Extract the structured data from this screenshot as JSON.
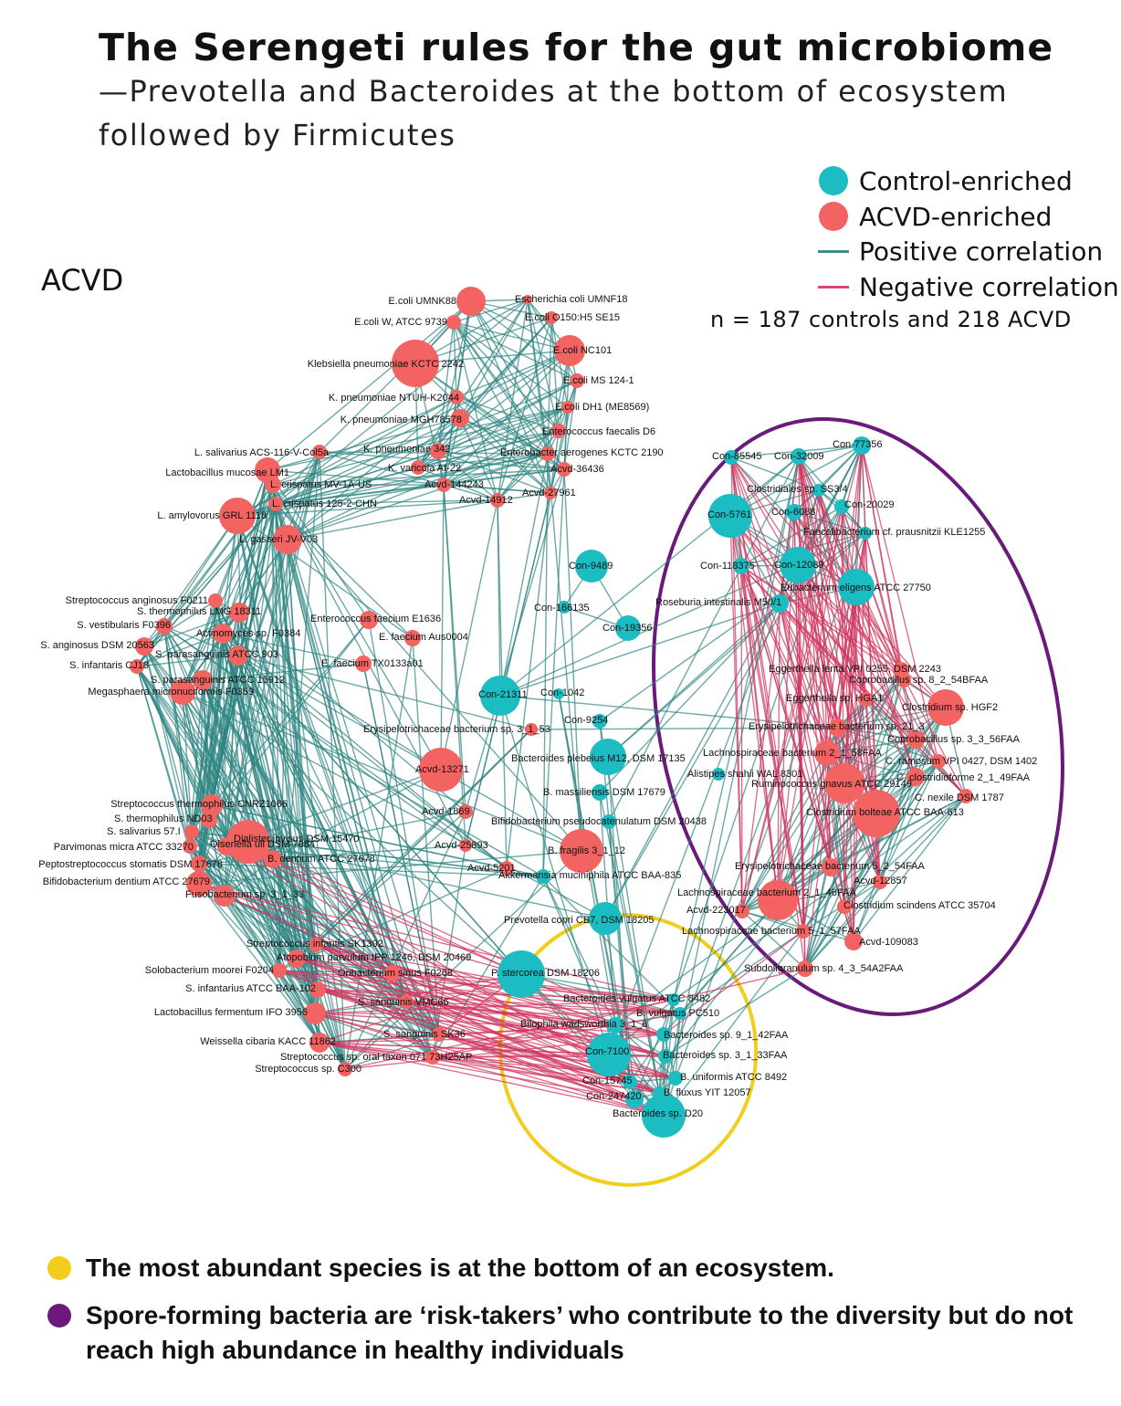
{
  "header": {
    "title": "The Serengeti rules for the gut microbiome",
    "subtitle": "—Prevotella and Bacteroides at the bottom of ecosystem followed by Firmicutes"
  },
  "panel_label": "ACVD",
  "legend": {
    "control": {
      "label": "Control-enriched",
      "color": "#1bbcc2"
    },
    "acvd": {
      "label": "ACVD-enriched",
      "color": "#f26361"
    },
    "positive": {
      "label": "Positive correlation",
      "color": "#3f8f8c"
    },
    "negative": {
      "label": "Negative correlation",
      "color": "#d9486e"
    }
  },
  "sample_note": "n = 187 controls and 218 ACVD",
  "footer": {
    "yellow": {
      "text": "The most abundant species is at the bottom of an ecosystem.",
      "color": "#f3cd1b"
    },
    "purple": {
      "text": "Spore-forming bacteria are ‘risk-takers’ who contribute to the diversity but do not reach high abundance in healthy individuals",
      "color": "#6a1a7a"
    }
  },
  "colors": {
    "positive_edge": "#2e8582",
    "negative_edge": "#d0365f",
    "yellow_ring": "#f3cd1b",
    "purple_ring": "#6a1a7a"
  },
  "network": {
    "nodes": [
      {
        "id": "n1",
        "label": "E.coli UMNK88",
        "type": "acvd"
      },
      {
        "id": "n2",
        "label": "Escherichia coli UMNF18",
        "type": "acvd"
      },
      {
        "id": "n3",
        "label": "E.coli W, ATCC 9739",
        "type": "acvd"
      },
      {
        "id": "n4",
        "label": "E.coli O150:H5 SE15",
        "type": "acvd"
      },
      {
        "id": "n5",
        "label": "E.coli NC101",
        "type": "acvd"
      },
      {
        "id": "n6",
        "label": "Klebsiella pneumoniae KCTC 2242",
        "type": "acvd"
      },
      {
        "id": "n7",
        "label": "E.coli MS 124-1",
        "type": "acvd"
      },
      {
        "id": "n8",
        "label": "K. pneumoniae NTUH-K2044",
        "type": "acvd"
      },
      {
        "id": "n9",
        "label": "E.coli DH1 (ME8569)",
        "type": "acvd"
      },
      {
        "id": "n10",
        "label": "K. pneumoniae MGH78578",
        "type": "acvd"
      },
      {
        "id": "n11",
        "label": "Enterococcus faecalis D6",
        "type": "acvd"
      },
      {
        "id": "n12",
        "label": "L. salivarius ACS-116-V-Col5a",
        "type": "acvd"
      },
      {
        "id": "n13",
        "label": "K. pneumoniae 342",
        "type": "acvd"
      },
      {
        "id": "n14",
        "label": "Enterobacter aerogenes KCTC 2190",
        "type": "acvd"
      },
      {
        "id": "n15",
        "label": "Lactobacillus mucosae LM1",
        "type": "acvd"
      },
      {
        "id": "n16",
        "label": "K. varicola At-22",
        "type": "acvd"
      },
      {
        "id": "n17",
        "label": "Acvd-36436",
        "type": "acvd"
      },
      {
        "id": "n18",
        "label": "L. crispatus MV-1A-US",
        "type": "acvd"
      },
      {
        "id": "n19",
        "label": "Acvd-144243",
        "type": "acvd"
      },
      {
        "id": "n20",
        "label": "Acvd-27961",
        "type": "acvd"
      },
      {
        "id": "n21",
        "label": "L. crispatus 125-2-CHN",
        "type": "acvd"
      },
      {
        "id": "n22",
        "label": "Acvd-14912",
        "type": "acvd"
      },
      {
        "id": "n23",
        "label": "L. amylovorus GRL 1118",
        "type": "acvd"
      },
      {
        "id": "n24",
        "label": "L. gasseri JV-V03",
        "type": "acvd"
      },
      {
        "id": "n25",
        "label": "Streptococcus anginosus F0211",
        "type": "acvd"
      },
      {
        "id": "n26",
        "label": "S. thermophilus LMG 18311",
        "type": "acvd"
      },
      {
        "id": "n27",
        "label": "Enterococcus faecium E1636",
        "type": "acvd"
      },
      {
        "id": "n28",
        "label": "S. vestibularis F0396",
        "type": "acvd"
      },
      {
        "id": "n29",
        "label": "Actinomyces sp. F0384",
        "type": "acvd"
      },
      {
        "id": "n30",
        "label": "E. faecium Aus0004",
        "type": "acvd"
      },
      {
        "id": "n31",
        "label": "S. anginosus DSM 20563",
        "type": "acvd"
      },
      {
        "id": "n32",
        "label": "S. parasanguinis ATCC 903",
        "type": "acvd"
      },
      {
        "id": "n33",
        "label": "S. infantaris CJ18",
        "type": "acvd"
      },
      {
        "id": "n34",
        "label": "E. faecium TX0133a01",
        "type": "acvd"
      },
      {
        "id": "n35",
        "label": "S. parasanguinis ATCC 15912",
        "type": "acvd"
      },
      {
        "id": "n36",
        "label": "Megasphaera micronuciformis F0359",
        "type": "acvd"
      },
      {
        "id": "n37",
        "label": "Erysipelotrichaceae bacterium sp. 3_1_53",
        "type": "acvd"
      },
      {
        "id": "n38",
        "label": "Acvd-13271",
        "type": "acvd"
      },
      {
        "id": "n39",
        "label": "Acvd-1869",
        "type": "acvd"
      },
      {
        "id": "n40",
        "label": "Streptococcus thermophilus CNRZ1066",
        "type": "acvd"
      },
      {
        "id": "n41",
        "label": "S. thermophilus ND03",
        "type": "acvd"
      },
      {
        "id": "n42",
        "label": "S. salivarius 57.I",
        "type": "acvd"
      },
      {
        "id": "n43",
        "label": "Olsenella uli DSM 7084",
        "type": "acvd"
      },
      {
        "id": "n44",
        "label": "Parvimonas micra ATCC 33270",
        "type": "acvd"
      },
      {
        "id": "n45",
        "label": "Dialister invisus DSM 15470",
        "type": "acvd"
      },
      {
        "id": "n46",
        "label": "Peptostreptococcus stomatis DSM 17678",
        "type": "acvd"
      },
      {
        "id": "n47",
        "label": "B. dentium ATCC 27678",
        "type": "acvd"
      },
      {
        "id": "n48",
        "label": "Bifidobacterium dentium ATCC 27679",
        "type": "acvd"
      },
      {
        "id": "n49",
        "label": "Fusobacterium sp. 3_1_33",
        "type": "acvd"
      },
      {
        "id": "n50",
        "label": "Acvd-25893",
        "type": "acvd"
      },
      {
        "id": "n51",
        "label": "Acvd-5201",
        "type": "acvd"
      },
      {
        "id": "n52",
        "label": "B. fragilis 3_1_12",
        "type": "acvd"
      },
      {
        "id": "n53",
        "label": "Streptococcus infantis SK1302",
        "type": "acvd"
      },
      {
        "id": "n54",
        "label": "Atopobium parvulum IPP 1246, DSM 20469",
        "type": "acvd"
      },
      {
        "id": "n55",
        "label": "Solobacterium moorei F0204",
        "type": "acvd"
      },
      {
        "id": "n56",
        "label": "Oribacterium sinus F0268",
        "type": "acvd"
      },
      {
        "id": "n57",
        "label": "S. infantarius ATCC BAA-102",
        "type": "acvd"
      },
      {
        "id": "n58",
        "label": "S. sanguinis VMC66",
        "type": "acvd"
      },
      {
        "id": "n59",
        "label": "Lactobacillus fermentum IFO 3956",
        "type": "acvd"
      },
      {
        "id": "n60",
        "label": "S. sanguinis SK36",
        "type": "acvd"
      },
      {
        "id": "n61",
        "label": "Weissella cibaria KACC 11862",
        "type": "acvd"
      },
      {
        "id": "n62",
        "label": "Streptococcus sp. oral taxon 071 73H25AP",
        "type": "acvd"
      },
      {
        "id": "n63",
        "label": "Streptococcus sp. C300",
        "type": "acvd"
      },
      {
        "id": "c1",
        "label": "Con-9489",
        "type": "control"
      },
      {
        "id": "c2",
        "label": "Con-166135",
        "type": "control"
      },
      {
        "id": "c3",
        "label": "Con-19356",
        "type": "control"
      },
      {
        "id": "c4",
        "label": "Con-21311",
        "type": "control"
      },
      {
        "id": "c5",
        "label": "Con-1042",
        "type": "control"
      },
      {
        "id": "c6",
        "label": "Con-9254",
        "type": "control"
      },
      {
        "id": "c7",
        "label": "Bacteroides plebeius M12, DSM 17135",
        "type": "control"
      },
      {
        "id": "c8",
        "label": "B. massiliensis DSM 17679",
        "type": "control"
      },
      {
        "id": "c9",
        "label": "Bifidobacterium pseudocatenulatum DSM 20438",
        "type": "control"
      },
      {
        "id": "c10",
        "label": "Akkermansia muciniphila ATCC BAA-835",
        "type": "control"
      },
      {
        "id": "c11",
        "label": "Prevotella copri CB7, DSM 18205",
        "type": "control"
      },
      {
        "id": "c12",
        "label": "P. stercorea DSM 18206",
        "type": "control"
      },
      {
        "id": "c13",
        "label": "Bacteroides vulgatus ATCC 8482",
        "type": "control"
      },
      {
        "id": "c14",
        "label": "B. vulgatus PC510",
        "type": "control"
      },
      {
        "id": "c15",
        "label": "Bilophila wadsworthia 3_1_6",
        "type": "control"
      },
      {
        "id": "c16",
        "label": "Bacteroides sp. 9_1_42FAA",
        "type": "control"
      },
      {
        "id": "c17",
        "label": "Con-7100",
        "type": "control"
      },
      {
        "id": "c18",
        "label": "Bacteroides sp. 3_1_33FAA",
        "type": "control"
      },
      {
        "id": "c19",
        "label": "B. uniformis ATCC 8492",
        "type": "control"
      },
      {
        "id": "c20",
        "label": "Con-15745",
        "type": "control"
      },
      {
        "id": "c21",
        "label": "B. fluxus YIT 12057",
        "type": "control"
      },
      {
        "id": "c22",
        "label": "Con-247420",
        "type": "control"
      },
      {
        "id": "c23",
        "label": "Bacteroides sp. D20",
        "type": "control"
      },
      {
        "id": "p1",
        "label": "Con-77356",
        "type": "control"
      },
      {
        "id": "p2",
        "label": "Con-85545",
        "type": "control"
      },
      {
        "id": "p3",
        "label": "Con-32009",
        "type": "control"
      },
      {
        "id": "p4",
        "label": "Clostridiales sp. SS3/4",
        "type": "control"
      },
      {
        "id": "p5",
        "label": "Con-20029",
        "type": "control"
      },
      {
        "id": "p6",
        "label": "Con-5761",
        "type": "control"
      },
      {
        "id": "p7",
        "label": "Con-6088",
        "type": "control"
      },
      {
        "id": "p8",
        "label": "Faecalibacterium cf. prausnitzii KLE1255",
        "type": "control"
      },
      {
        "id": "p9",
        "label": "Con-118375",
        "type": "control"
      },
      {
        "id": "p10",
        "label": "Con-12089",
        "type": "control"
      },
      {
        "id": "p11",
        "label": "Eubacterium eligens ATCC 27750",
        "type": "control"
      },
      {
        "id": "p12",
        "label": "Roseburia intestinalis M50/1",
        "type": "control"
      },
      {
        "id": "q1",
        "label": "Eggerthella lenta VPI 0255, DSM 2243",
        "type": "acvd"
      },
      {
        "id": "q2",
        "label": "Coprobacillus sp. 8_2_54BFAA",
        "type": "acvd"
      },
      {
        "id": "q3",
        "label": "Eggerthella sp. HGA1",
        "type": "acvd"
      },
      {
        "id": "q4",
        "label": "Clostridium sp. HGF2",
        "type": "acvd"
      },
      {
        "id": "q5",
        "label": "Erysipelotrichaceae bacterium sp. 21_3",
        "type": "acvd"
      },
      {
        "id": "q6",
        "label": "Coprobacillus sp. 3_3_56FAA",
        "type": "acvd"
      },
      {
        "id": "q7",
        "label": "Lachnospiraceae bacterium 2_1_58FAA",
        "type": "acvd"
      },
      {
        "id": "q8",
        "label": "C. ramosum VPI 0427, DSM 1402",
        "type": "acvd"
      },
      {
        "id": "q9",
        "label": "Alistipes shahii WAL 8301",
        "type": "control"
      },
      {
        "id": "q10",
        "label": "C. clostridioforme 2_1_49FAA",
        "type": "acvd"
      },
      {
        "id": "q11",
        "label": "Ruminococcus gnavus ATCC 29149",
        "type": "acvd"
      },
      {
        "id": "q12",
        "label": "C. nexile DSM 1787",
        "type": "acvd"
      },
      {
        "id": "q13",
        "label": "Clostridium bolteae ATCC BAA-613",
        "type": "acvd"
      },
      {
        "id": "q14",
        "label": "Erysipelotrichaceae bacterium 5_2_54FAA",
        "type": "acvd"
      },
      {
        "id": "q15",
        "label": "Acvd-12857",
        "type": "acvd"
      },
      {
        "id": "q16",
        "label": "Lachnospiraceae bacterium 2_1_46FAA",
        "type": "acvd"
      },
      {
        "id": "q17",
        "label": "Clostridium scindens ATCC 35704",
        "type": "acvd"
      },
      {
        "id": "q18",
        "label": "Acvd-223017",
        "type": "acvd"
      },
      {
        "id": "q19",
        "label": "Lachnospiraceae bacterium 5_1_57FAA",
        "type": "acvd"
      },
      {
        "id": "q20",
        "label": "Acvd-109083",
        "type": "acvd"
      },
      {
        "id": "q21",
        "label": "Subdoligranulum sp. 4_3_54A2FAA",
        "type": "acvd"
      }
    ]
  }
}
